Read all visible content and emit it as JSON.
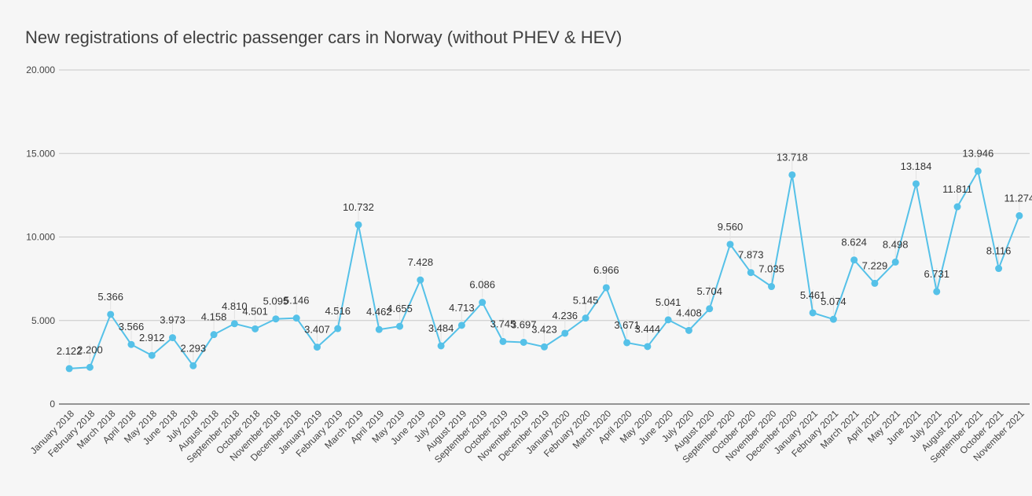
{
  "chart_data": {
    "type": "line",
    "title": "New registrations of electric passenger cars in Norway (without PHEV & HEV)",
    "xlabel": "",
    "ylabel": "",
    "ylim": [
      0,
      20000
    ],
    "yticks": [
      0,
      5000,
      10000,
      15000,
      20000
    ],
    "ytick_labels": [
      "0",
      "5.000",
      "10.000",
      "15.000",
      "20.000"
    ],
    "grid": true,
    "legend": "none",
    "color": "#55c1e8",
    "categories": [
      "January 2018",
      "February 2018",
      "March 2018",
      "April 2018",
      "May 2018",
      "June 2018",
      "July 2018",
      "August 2018",
      "September 2018",
      "October 2018",
      "November 2018",
      "December 2018",
      "January 2019",
      "February 2019",
      "March 2019",
      "April 2019",
      "May 2019",
      "June 2019",
      "July 2019",
      "August 2019",
      "September 2019",
      "October 2019",
      "November 2019",
      "December 2019",
      "January 2020",
      "February 2020",
      "March 2020",
      "April 2020",
      "May 2020",
      "June 2020",
      "July 2020",
      "August 2020",
      "September 2020",
      "October 2020",
      "November 2020",
      "December 2020",
      "January 2021",
      "February 2021",
      "March 2021",
      "April 2021",
      "May 2021",
      "June 2021",
      "July 2021",
      "August 2021",
      "September 2021",
      "October 2021",
      "November 2021"
    ],
    "values": [
      2122,
      2200,
      5366,
      3566,
      2912,
      3973,
      2293,
      4158,
      4810,
      4501,
      5095,
      5146,
      3407,
      4516,
      10732,
      4462,
      4655,
      7428,
      3484,
      4713,
      6086,
      3745,
      3697,
      3423,
      4236,
      5145,
      6966,
      3671,
      3444,
      5041,
      4408,
      5704,
      9560,
      7873,
      7035,
      13718,
      5461,
      5074,
      8624,
      7229,
      8498,
      13184,
      6731,
      11811,
      13946,
      8116,
      11274
    ],
    "value_labels": [
      "2.122",
      "2.200",
      "5.366",
      "3.566",
      "2.912",
      "3.973",
      "2.293",
      "4.158",
      "4.810",
      "4.501",
      "5.095",
      "5.146",
      "3.407",
      "4.516",
      "10.732",
      "4.462",
      "4.655",
      "7.428",
      "3.484",
      "4.713",
      "6.086",
      "3.745",
      "3.697",
      "3.423",
      "4.236",
      "5.145",
      "6.966",
      "3.671",
      "3.444",
      "5.041",
      "4.408",
      "5.704",
      "9.560",
      "7.873",
      "7.035",
      "13.718",
      "5.461",
      "5.074",
      "8.624",
      "7.229",
      "8.498",
      "13.184",
      "6.731",
      "11.811",
      "13.946",
      "8.116",
      "11.274"
    ]
  }
}
